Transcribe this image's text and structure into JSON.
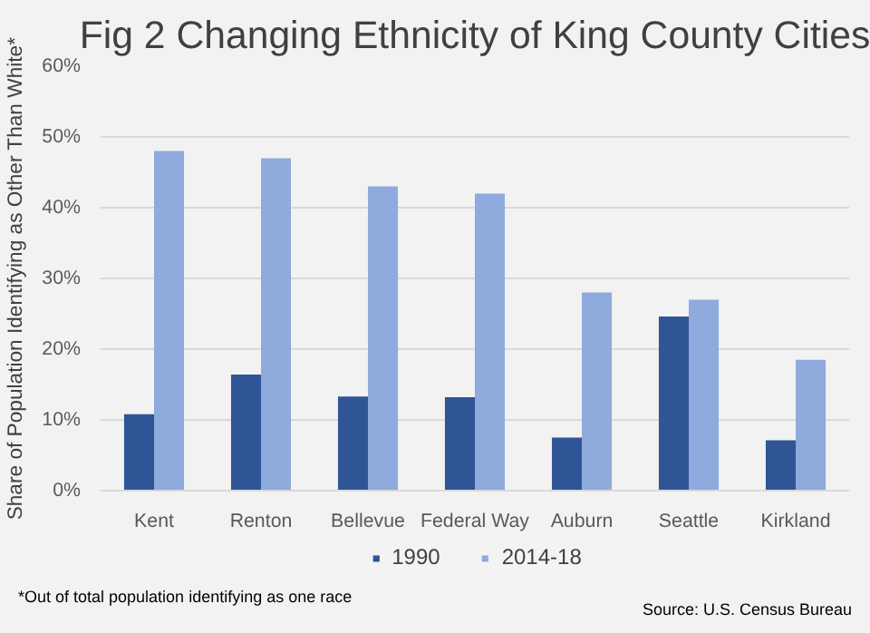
{
  "chart_data": {
    "type": "bar",
    "title": "Fig 2 Changing Ethnicity of King County Cities",
    "ylabel": "Share of Population Identifying as Other Than White*",
    "categories": [
      "Kent",
      "Renton",
      "Bellevue",
      "Federal Way",
      "Auburn",
      "Seattle",
      "Kirkland"
    ],
    "series": [
      {
        "name": "1990",
        "color": "#2f5597",
        "values": [
          10.8,
          16.4,
          13.3,
          13.2,
          7.5,
          24.6,
          7.1
        ]
      },
      {
        "name": "2014-18",
        "color": "#8faadc",
        "values": [
          48,
          47,
          43,
          42,
          28,
          27,
          18.5
        ]
      }
    ],
    "ylim": [
      0,
      60
    ],
    "yticks": [
      {
        "value": 0,
        "label": "0%"
      },
      {
        "value": 10,
        "label": "10%"
      },
      {
        "value": 20,
        "label": "20%"
      },
      {
        "value": 30,
        "label": "30%"
      },
      {
        "value": 40,
        "label": "40%"
      },
      {
        "value": 50,
        "label": "50%"
      },
      {
        "value": 60,
        "label": "60%"
      }
    ],
    "grid": "y",
    "legend": "bottom",
    "annotations": [
      "*Out of total population identifying as one race",
      "Source: U.S. Census Bureau"
    ]
  }
}
